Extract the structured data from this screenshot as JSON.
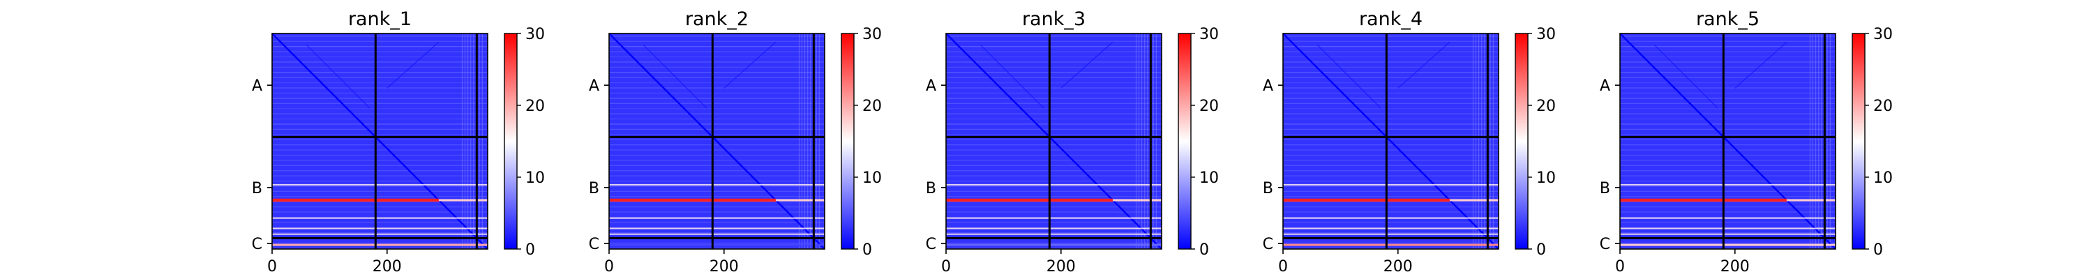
{
  "chart_data": [
    {
      "type": "heatmap",
      "title": "rank_1",
      "x_ticks": [
        0,
        200
      ],
      "y_labels": [
        "A",
        "B",
        "C"
      ],
      "chain_breaks": [
        180,
        356
      ],
      "xlim": [
        0,
        375
      ],
      "colorbar_ticks": [
        0,
        10,
        20,
        30
      ],
      "clim": [
        0,
        30
      ],
      "colormap": [
        "#0000ff",
        "#ffffff",
        "#ff0000"
      ],
      "high_error_rows": [
        {
          "position": 290,
          "value": 28
        }
      ],
      "low_error_band": {
        "chain": "C",
        "value": 20
      }
    },
    {
      "type": "heatmap",
      "title": "rank_2",
      "x_ticks": [
        0,
        200
      ],
      "y_labels": [
        "A",
        "B",
        "C"
      ],
      "chain_breaks": [
        180,
        356
      ],
      "xlim": [
        0,
        375
      ],
      "colorbar_ticks": [
        0,
        10,
        20,
        30
      ],
      "clim": [
        0,
        30
      ],
      "colormap": [
        "#0000ff",
        "#ffffff",
        "#ff0000"
      ],
      "high_error_rows": [
        {
          "position": 290,
          "value": 28
        }
      ],
      "low_error_band": {
        "chain": "C",
        "value": 4
      }
    },
    {
      "type": "heatmap",
      "title": "rank_3",
      "x_ticks": [
        0,
        200
      ],
      "y_labels": [
        "A",
        "B",
        "C"
      ],
      "chain_breaks": [
        180,
        356
      ],
      "xlim": [
        0,
        375
      ],
      "colorbar_ticks": [
        0,
        10,
        20,
        30
      ],
      "clim": [
        0,
        30
      ],
      "colormap": [
        "#0000ff",
        "#ffffff",
        "#ff0000"
      ],
      "high_error_rows": [
        {
          "position": 290,
          "value": 28
        }
      ],
      "low_error_band": {
        "chain": "C",
        "value": 6
      }
    },
    {
      "type": "heatmap",
      "title": "rank_4",
      "x_ticks": [
        0,
        200
      ],
      "y_labels": [
        "A",
        "B",
        "C"
      ],
      "chain_breaks": [
        180,
        356
      ],
      "xlim": [
        0,
        375
      ],
      "colorbar_ticks": [
        0,
        10,
        20,
        30
      ],
      "clim": [
        0,
        30
      ],
      "colormap": [
        "#0000ff",
        "#ffffff",
        "#ff0000"
      ],
      "high_error_rows": [
        {
          "position": 290,
          "value": 28
        }
      ],
      "low_error_band": {
        "chain": "C",
        "value": 22
      }
    },
    {
      "type": "heatmap",
      "title": "rank_5",
      "x_ticks": [
        0,
        200
      ],
      "y_labels": [
        "A",
        "B",
        "C"
      ],
      "chain_breaks": [
        180,
        356
      ],
      "xlim": [
        0,
        375
      ],
      "colorbar_ticks": [
        0,
        10,
        20,
        30
      ],
      "clim": [
        0,
        30
      ],
      "colormap": [
        "#0000ff",
        "#ffffff",
        "#ff0000"
      ],
      "high_error_rows": [
        {
          "position": 290,
          "value": 28
        }
      ],
      "low_error_band": {
        "chain": "C",
        "value": 18
      }
    }
  ]
}
